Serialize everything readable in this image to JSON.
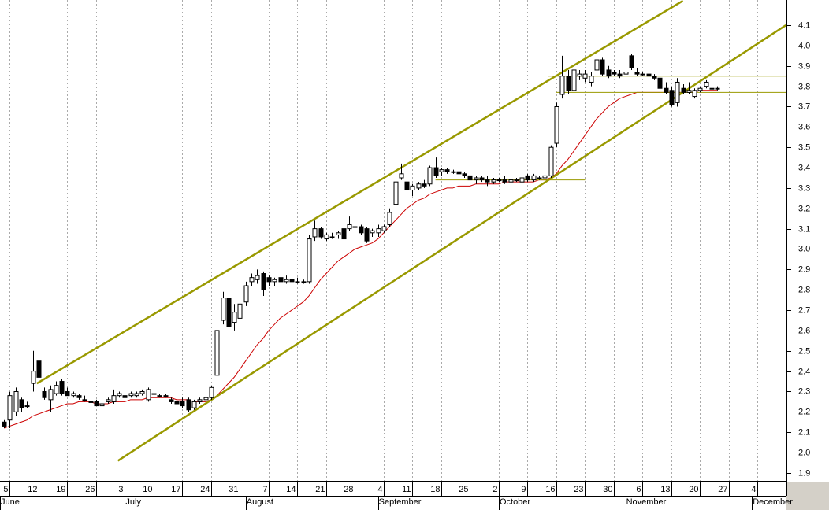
{
  "chart_data": {
    "type": "candlestick",
    "x": [
      0,
      1,
      2,
      3,
      4,
      5,
      6,
      7,
      8,
      9,
      10,
      11,
      12,
      13,
      14,
      15,
      16,
      17,
      18,
      19,
      20,
      21,
      22,
      23,
      24,
      25,
      26,
      27,
      28,
      29,
      30,
      31,
      32,
      33,
      34,
      35,
      36,
      37,
      38,
      39,
      40,
      41,
      42,
      43,
      44,
      45,
      46,
      47,
      48,
      49,
      50,
      51,
      52,
      53,
      54,
      55,
      56,
      57,
      58,
      59,
      60,
      61,
      62,
      63,
      64,
      65,
      66,
      67,
      68,
      69,
      70,
      71,
      72,
      73,
      74,
      75,
      76,
      77,
      78,
      79,
      80,
      81,
      82,
      83,
      84,
      85,
      86,
      87,
      88,
      89,
      90,
      91,
      92,
      93,
      94,
      95,
      96,
      97,
      98,
      99,
      100,
      101,
      102,
      103,
      104,
      105,
      106,
      107,
      108,
      109,
      110,
      111,
      112,
      113,
      114,
      115,
      116,
      117,
      118,
      119,
      120,
      121,
      122,
      123,
      124
    ],
    "open": [
      2.15,
      2.16,
      2.2,
      2.26,
      2.23,
      2.34,
      2.45,
      2.3,
      2.26,
      2.29,
      2.35,
      2.3,
      2.28,
      2.28,
      2.26,
      2.25,
      2.25,
      2.23,
      2.25,
      2.25,
      2.28,
      2.28,
      2.28,
      2.28,
      2.29,
      2.26,
      2.29,
      2.28,
      2.28,
      2.26,
      2.25,
      2.25,
      2.26,
      2.22,
      2.25,
      2.26,
      2.27,
      2.38,
      2.65,
      2.76,
      2.64,
      2.66,
      2.74,
      2.84,
      2.85,
      2.88,
      2.86,
      2.84,
      2.86,
      2.84,
      2.85,
      2.84,
      2.84,
      2.84,
      3.06,
      3.1,
      3.05,
      3.06,
      3.07,
      3.1,
      3.1,
      3.11,
      3.11,
      3.1,
      3.08,
      3.08,
      3.09,
      3.12,
      3.22,
      3.35,
      3.33,
      3.29,
      3.3,
      3.32,
      3.32,
      3.4,
      3.38,
      3.39,
      3.38,
      3.38,
      3.37,
      3.36,
      3.34,
      3.35,
      3.34,
      3.33,
      3.34,
      3.34,
      3.33,
      3.34,
      3.33,
      3.36,
      3.34,
      3.35,
      3.35,
      3.36,
      3.52,
      3.76,
      3.85,
      3.78,
      3.85,
      3.84,
      3.82,
      3.88,
      3.93,
      3.88,
      3.87,
      3.86,
      3.86,
      3.95,
      3.87,
      3.86,
      3.86,
      3.85,
      3.84,
      3.79,
      3.78,
      3.72,
      3.79,
      3.77,
      3.75,
      3.78,
      3.8,
      3.79,
      3.79
    ],
    "high": [
      2.16,
      2.3,
      2.32,
      2.27,
      2.25,
      2.5,
      2.46,
      2.32,
      2.33,
      2.35,
      2.36,
      2.32,
      2.3,
      2.29,
      2.28,
      2.26,
      2.26,
      2.25,
      2.27,
      2.31,
      2.3,
      2.3,
      2.3,
      2.3,
      2.31,
      2.32,
      2.3,
      2.29,
      2.29,
      2.27,
      2.26,
      2.27,
      2.27,
      2.26,
      2.27,
      2.28,
      2.33,
      2.62,
      2.79,
      2.77,
      2.73,
      2.75,
      2.84,
      2.88,
      2.9,
      2.89,
      2.87,
      2.86,
      2.87,
      2.87,
      2.86,
      2.86,
      2.85,
      3.07,
      3.14,
      3.11,
      3.08,
      3.08,
      3.09,
      3.11,
      3.16,
      3.13,
      3.12,
      3.11,
      3.1,
      3.12,
      3.12,
      3.2,
      3.34,
      3.42,
      3.34,
      3.32,
      3.33,
      3.34,
      3.41,
      3.45,
      3.4,
      3.4,
      3.39,
      3.4,
      3.38,
      3.38,
      3.36,
      3.36,
      3.36,
      3.35,
      3.35,
      3.36,
      3.35,
      3.35,
      3.36,
      3.37,
      3.37,
      3.36,
      3.37,
      3.51,
      3.72,
      3.95,
      3.88,
      3.9,
      3.88,
      3.88,
      3.87,
      4.02,
      3.94,
      3.9,
      3.88,
      3.88,
      3.88,
      3.96,
      3.89,
      3.87,
      3.87,
      3.86,
      3.85,
      3.82,
      3.8,
      3.84,
      3.81,
      3.82,
      3.79,
      3.8,
      3.83,
      3.8,
      3.8
    ],
    "low": [
      2.12,
      2.12,
      2.18,
      2.2,
      2.22,
      2.3,
      2.36,
      2.26,
      2.2,
      2.28,
      2.28,
      2.28,
      2.27,
      2.26,
      2.25,
      2.24,
      2.23,
      2.22,
      2.24,
      2.24,
      2.27,
      2.26,
      2.27,
      2.27,
      2.28,
      2.25,
      2.28,
      2.27,
      2.27,
      2.24,
      2.23,
      2.22,
      2.2,
      2.21,
      2.24,
      2.25,
      2.26,
      2.37,
      2.63,
      2.61,
      2.6,
      2.65,
      2.72,
      2.82,
      2.83,
      2.77,
      2.82,
      2.82,
      2.83,
      2.83,
      2.83,
      2.83,
      2.83,
      2.83,
      3.04,
      3.05,
      3.04,
      3.05,
      3.05,
      3.04,
      3.09,
      3.1,
      3.07,
      3.03,
      3.06,
      3.06,
      3.08,
      3.11,
      3.2,
      3.34,
      3.25,
      3.26,
      3.29,
      3.3,
      3.31,
      3.35,
      3.36,
      3.37,
      3.37,
      3.36,
      3.35,
      3.33,
      3.32,
      3.33,
      3.31,
      3.32,
      3.33,
      3.32,
      3.32,
      3.33,
      3.32,
      3.33,
      3.33,
      3.34,
      3.34,
      3.35,
      3.5,
      3.74,
      3.76,
      3.76,
      3.83,
      3.82,
      3.8,
      3.87,
      3.85,
      3.84,
      3.85,
      3.84,
      3.85,
      3.88,
      3.85,
      3.85,
      3.84,
      3.83,
      3.78,
      3.76,
      3.7,
      3.7,
      3.76,
      3.76,
      3.74,
      3.77,
      3.79,
      3.78,
      3.78
    ],
    "close": [
      2.13,
      2.28,
      2.3,
      2.22,
      2.23,
      2.4,
      2.37,
      2.27,
      2.31,
      2.33,
      2.29,
      2.28,
      2.29,
      2.27,
      2.26,
      2.25,
      2.23,
      2.24,
      2.26,
      2.28,
      2.29,
      2.27,
      2.29,
      2.29,
      2.3,
      2.31,
      2.29,
      2.28,
      2.28,
      2.25,
      2.24,
      2.23,
      2.21,
      2.25,
      2.26,
      2.27,
      2.32,
      2.6,
      2.76,
      2.62,
      2.69,
      2.73,
      2.82,
      2.86,
      2.87,
      2.8,
      2.84,
      2.85,
      2.84,
      2.85,
      2.84,
      2.84,
      2.84,
      3.05,
      3.1,
      3.06,
      3.07,
      3.06,
      3.08,
      3.05,
      3.12,
      3.11,
      3.08,
      3.04,
      3.09,
      3.1,
      3.11,
      3.18,
      3.33,
      3.37,
      3.29,
      3.31,
      3.32,
      3.31,
      3.4,
      3.36,
      3.39,
      3.38,
      3.38,
      3.37,
      3.36,
      3.34,
      3.35,
      3.34,
      3.33,
      3.34,
      3.34,
      3.33,
      3.34,
      3.34,
      3.35,
      3.34,
      3.36,
      3.35,
      3.36,
      3.5,
      3.7,
      3.85,
      3.78,
      3.88,
      3.86,
      3.86,
      3.85,
      3.93,
      3.86,
      3.85,
      3.86,
      3.85,
      3.87,
      3.89,
      3.86,
      3.86,
      3.85,
      3.84,
      3.79,
      3.77,
      3.71,
      3.82,
      3.77,
      3.78,
      3.78,
      3.79,
      3.82,
      3.79,
      3.79
    ],
    "up_color": "#ffffff",
    "down_color": "#000000",
    "moving_average": {
      "color": "#cc0000",
      "values": [
        2.12,
        2.13,
        2.14,
        2.15,
        2.16,
        2.18,
        2.19,
        2.2,
        2.21,
        2.22,
        2.23,
        2.24,
        2.24,
        2.25,
        2.25,
        2.25,
        2.24,
        2.24,
        2.24,
        2.25,
        2.25,
        2.25,
        2.26,
        2.26,
        2.26,
        2.27,
        2.27,
        2.27,
        2.27,
        2.27,
        2.26,
        2.26,
        2.26,
        2.25,
        2.25,
        2.25,
        2.26,
        2.28,
        2.31,
        2.34,
        2.37,
        2.41,
        2.45,
        2.49,
        2.53,
        2.56,
        2.6,
        2.63,
        2.66,
        2.68,
        2.7,
        2.72,
        2.74,
        2.77,
        2.81,
        2.85,
        2.88,
        2.91,
        2.94,
        2.96,
        2.98,
        3.0,
        3.01,
        3.02,
        3.03,
        3.05,
        3.08,
        3.11,
        3.14,
        3.17,
        3.2,
        3.22,
        3.24,
        3.25,
        3.27,
        3.28,
        3.29,
        3.3,
        3.3,
        3.31,
        3.31,
        3.31,
        3.32,
        3.32,
        3.32,
        3.32,
        3.32,
        3.33,
        3.33,
        3.33,
        3.33,
        3.33,
        3.33,
        3.34,
        3.34,
        3.35,
        3.37,
        3.41,
        3.44,
        3.48,
        3.52,
        3.56,
        3.6,
        3.64,
        3.67,
        3.7,
        3.72,
        3.74,
        3.75,
        3.76,
        3.77,
        3.77,
        3.77,
        3.77,
        3.77,
        3.77,
        3.77,
        3.77,
        3.77,
        3.77,
        3.77,
        3.78,
        3.78,
        3.78,
        3.78
      ]
    },
    "trend_lines": [
      {
        "x": [
          5.7,
          118
        ],
        "y": [
          2.34,
          4.22
        ],
        "color": "#999900",
        "width": 2.5
      },
      {
        "x": [
          19.8,
          135.9
        ],
        "y": [
          1.96,
          4.1
        ],
        "color": "#999900",
        "width": 2.5
      },
      {
        "x": [
          75,
          101
        ],
        "y": [
          3.34,
          3.34
        ],
        "color": "#999900",
        "width": 1
      },
      {
        "x": [
          94.5,
          136
        ],
        "y": [
          3.85,
          3.85
        ],
        "color": "#999900",
        "width": 1
      },
      {
        "x": [
          96,
          136
        ],
        "y": [
          3.77,
          3.77
        ],
        "color": "#999900",
        "width": 1
      }
    ],
    "xlim": [
      -0.7,
      136
    ],
    "ylim": [
      1.861,
      4.224
    ],
    "grid": true,
    "xticks": [
      {
        "value": 1,
        "label": "5"
      },
      {
        "value": 6,
        "label": "12"
      },
      {
        "value": 11,
        "label": "19"
      },
      {
        "value": 16,
        "label": "26"
      },
      {
        "value": 21,
        "label": "3"
      },
      {
        "value": 26,
        "label": "10"
      },
      {
        "value": 31,
        "label": "17"
      },
      {
        "value": 36,
        "label": "24"
      },
      {
        "value": 41,
        "label": "31"
      },
      {
        "value": 46,
        "label": "7"
      },
      {
        "value": 51,
        "label": "14"
      },
      {
        "value": 56,
        "label": "21"
      },
      {
        "value": 61,
        "label": "28"
      },
      {
        "value": 66,
        "label": "4"
      },
      {
        "value": 71,
        "label": "11"
      },
      {
        "value": 76,
        "label": "18"
      },
      {
        "value": 81,
        "label": "25"
      },
      {
        "value": 86,
        "label": "2"
      },
      {
        "value": 91,
        "label": "9"
      },
      {
        "value": 96,
        "label": "16"
      },
      {
        "value": 101,
        "label": "23"
      },
      {
        "value": 106,
        "label": "30"
      },
      {
        "value": 111,
        "label": "6"
      },
      {
        "value": 116,
        "label": "13"
      },
      {
        "value": 121,
        "label": "20"
      },
      {
        "value": 126,
        "label": "27"
      },
      {
        "value": 131,
        "label": "4"
      }
    ],
    "month_labels": [
      {
        "value": -0.7,
        "label": "June"
      },
      {
        "value": 21,
        "label": "July"
      },
      {
        "value": 42,
        "label": "August"
      },
      {
        "value": 65,
        "label": "September"
      },
      {
        "value": 86,
        "label": "October"
      },
      {
        "value": 108,
        "label": "November"
      },
      {
        "value": 130,
        "label": "December"
      }
    ],
    "yticks": [
      {
        "value": 1.9,
        "label": "1.9"
      },
      {
        "value": 2,
        "label": "2.0"
      },
      2.1,
      2.2,
      2.3,
      2.4,
      2.5,
      2.6,
      2.7,
      2.8,
      2.9,
      {
        "value": 3,
        "label": "3.0"
      },
      3.1,
      3.2,
      3.3,
      3.4,
      3.5,
      3.6,
      3.7,
      3.8,
      3.9,
      {
        "value": 4,
        "label": "4.0"
      },
      4.1
    ]
  }
}
